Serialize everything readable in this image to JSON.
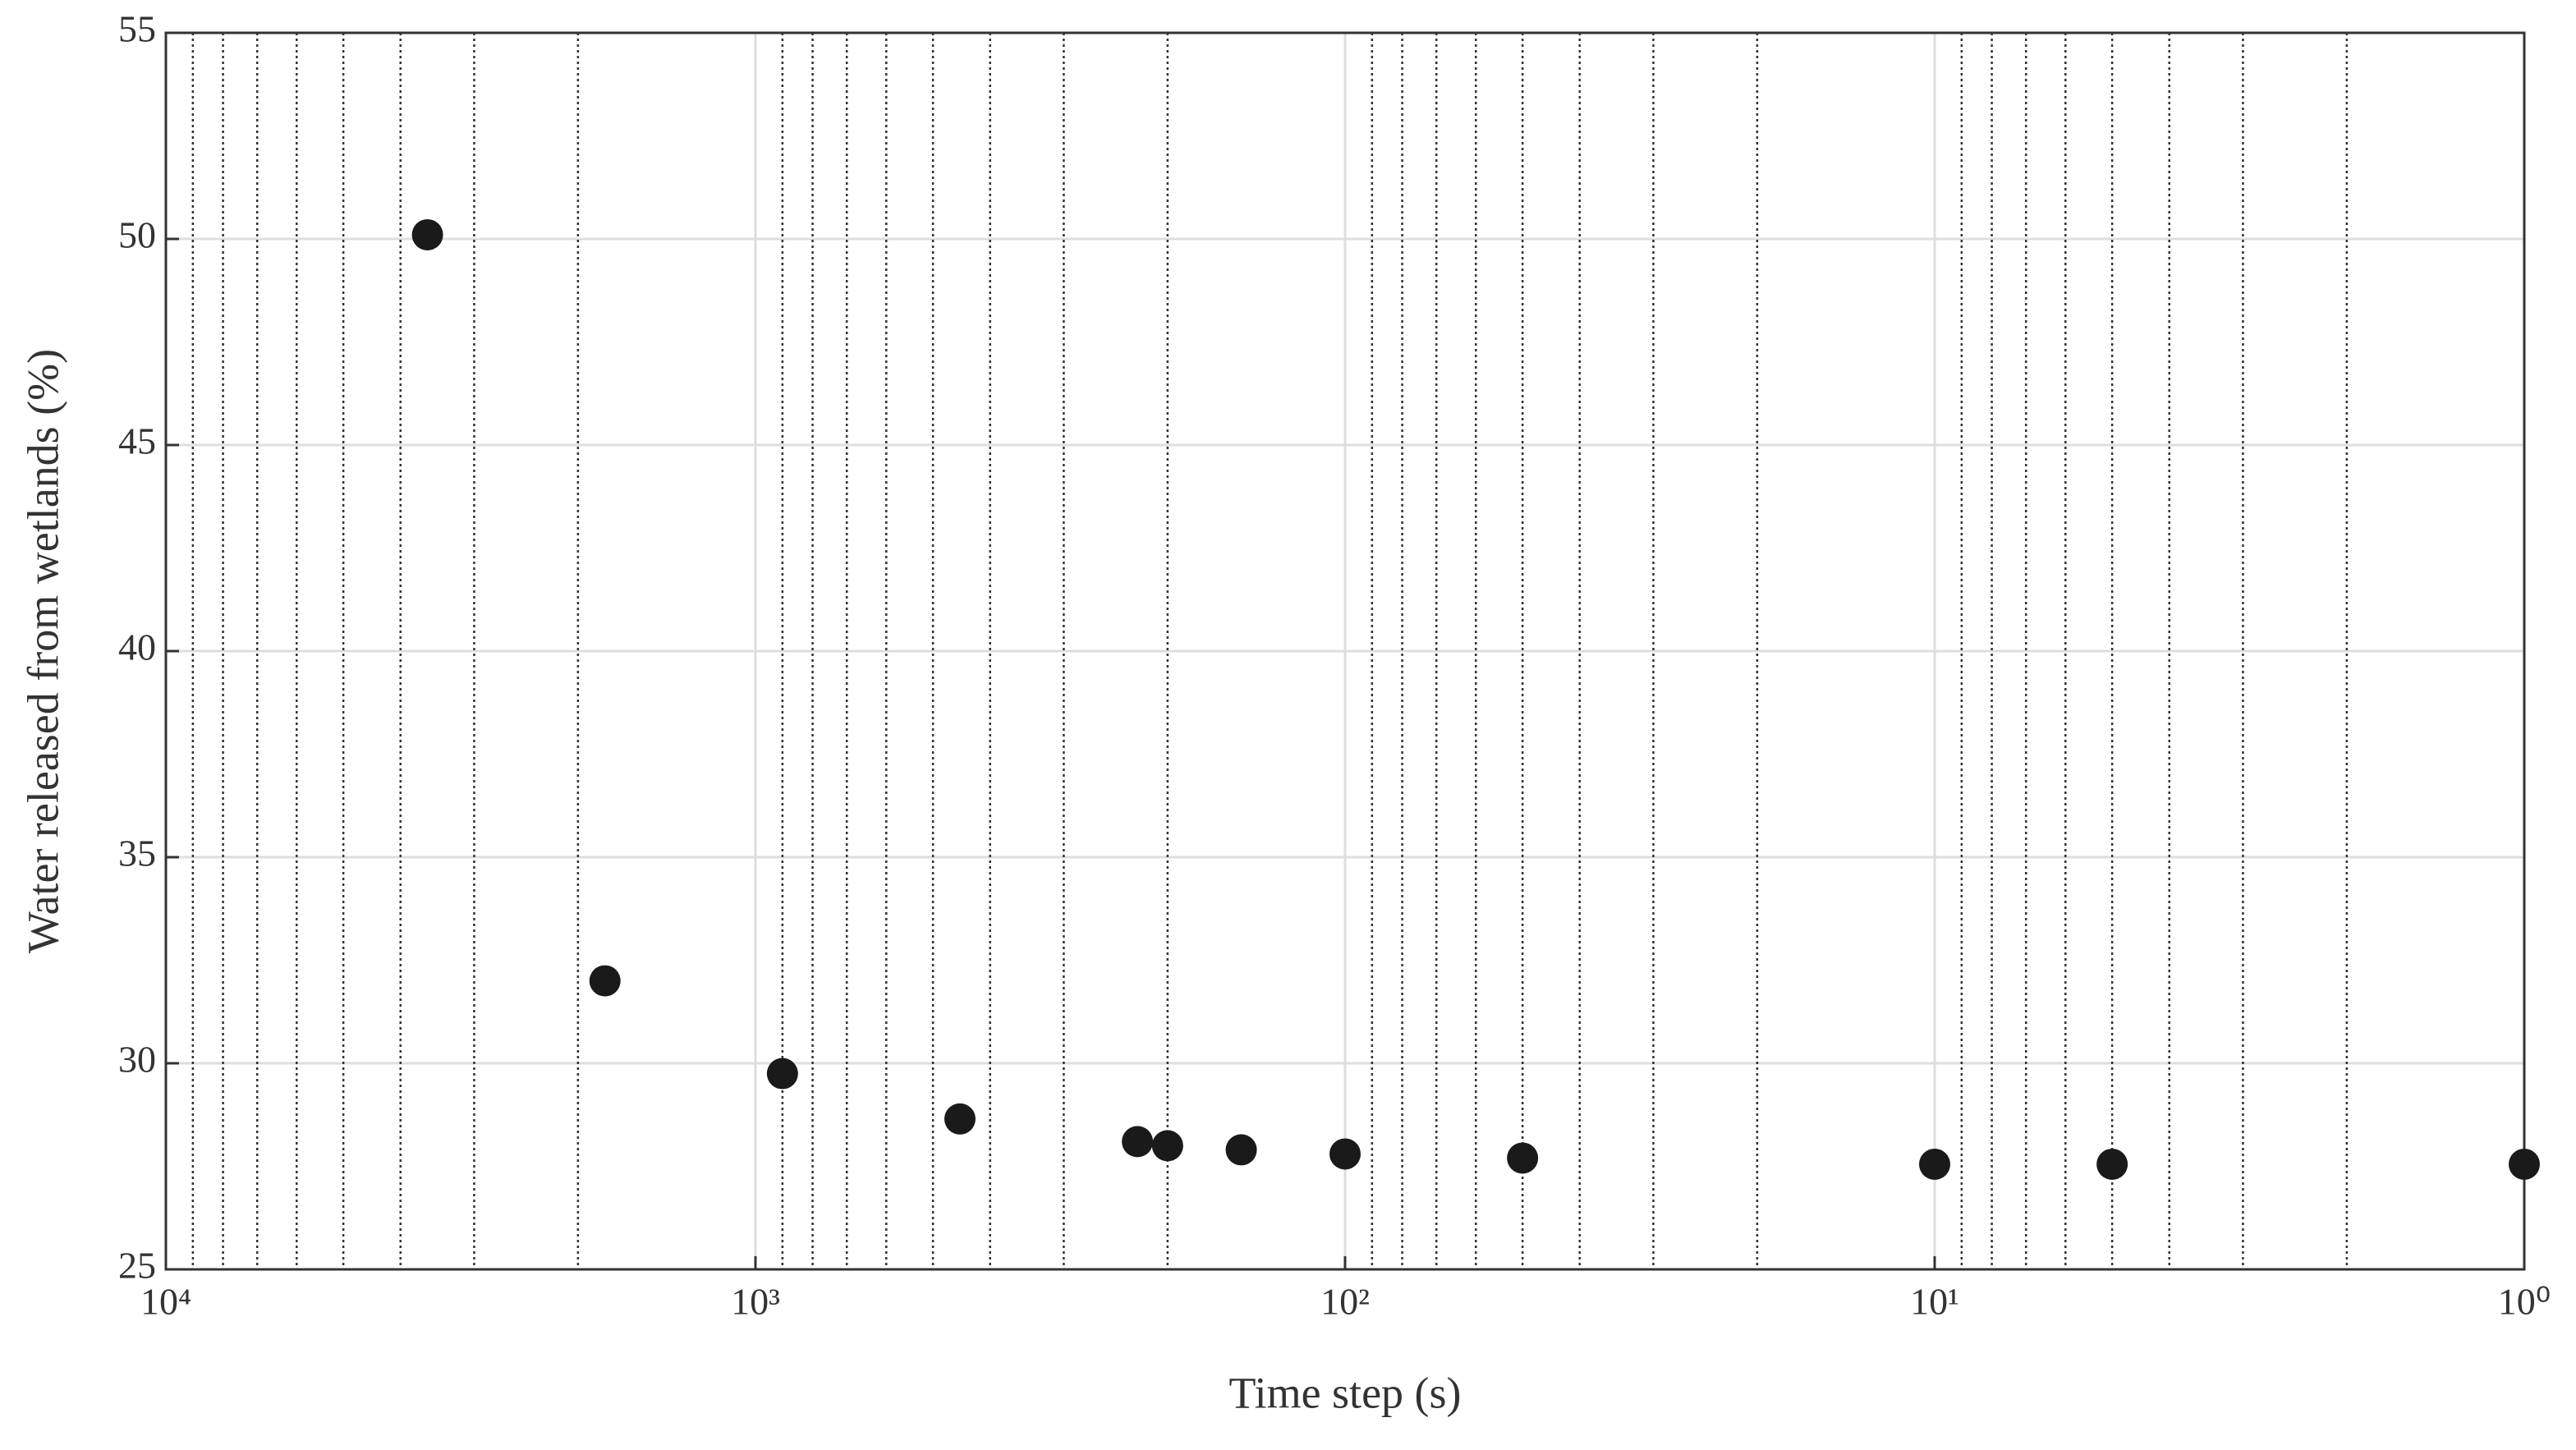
{
  "chart_data": {
    "type": "scatter",
    "xlabel": "Time step (s)",
    "ylabel": "Water released from wetlands (%)",
    "x": [
      3600,
      1800,
      900,
      450,
      225,
      200,
      150,
      100,
      50,
      10,
      5,
      1
    ],
    "values": [
      50.1,
      32.0,
      29.75,
      28.65,
      28.1,
      28.0,
      27.9,
      27.8,
      27.7,
      27.55,
      27.55,
      27.55
    ],
    "color": "#1a1a1a",
    "xscale": "log",
    "xreverse": true,
    "xlim": [
      10000,
      1
    ],
    "xticks": [
      {
        "value": 10000,
        "label": "10⁴"
      },
      {
        "value": 1000,
        "label": "10³"
      },
      {
        "value": 100,
        "label": "10²"
      },
      {
        "value": 10,
        "label": "10¹"
      },
      {
        "value": 1,
        "label": "10⁰"
      }
    ],
    "xminor": [
      9000,
      8000,
      7000,
      6000,
      5000,
      4000,
      3000,
      2000,
      900,
      800,
      700,
      600,
      500,
      400,
      300,
      200,
      90,
      80,
      70,
      60,
      50,
      40,
      30,
      20,
      9,
      8,
      7,
      6,
      5,
      4,
      3,
      2
    ],
    "ylim": [
      25,
      55
    ],
    "yticks": [
      25,
      30,
      35,
      40,
      45,
      50,
      55
    ],
    "grid": true,
    "minor_grid": true
  }
}
